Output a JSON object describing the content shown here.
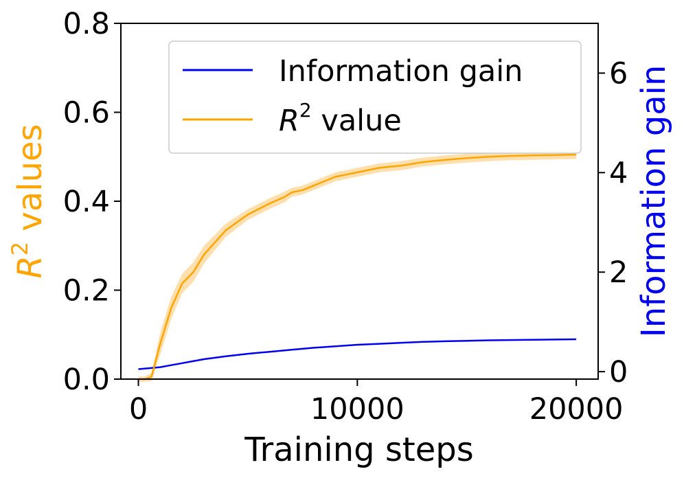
{
  "chart_data": {
    "type": "line",
    "title": "",
    "xlabel": "Training steps",
    "ylabel_left": {
      "base": "R",
      "sup": "2",
      "rest": " values"
    },
    "ylabel_right": "Information gain",
    "xlim": [
      -800,
      21000
    ],
    "ylim_left": [
      0,
      0.8
    ],
    "ylim_right": [
      -0.15,
      7.0
    ],
    "x_ticks": [
      0,
      10000,
      20000
    ],
    "x_tick_labels": [
      "0",
      "10000",
      "20000"
    ],
    "y_left_ticks": [
      0.0,
      0.2,
      0.4,
      0.6,
      0.8
    ],
    "y_left_tick_labels": [
      "0.0",
      "0.2",
      "0.4",
      "0.6",
      "0.8"
    ],
    "y_right_ticks": [
      0,
      2,
      4,
      6
    ],
    "y_right_tick_labels": [
      "0",
      "2",
      "4",
      "6"
    ],
    "legend": {
      "placement": "upper-right",
      "entries": [
        {
          "label": "Information gain",
          "series": "info_gain"
        },
        {
          "label_base": "R",
          "label_sup": "2",
          "label_rest": " value",
          "series": "r2"
        }
      ]
    },
    "series": [
      {
        "id": "info_gain",
        "name": "Information gain",
        "color": "#0000ee",
        "axis": "right",
        "x": [
          0,
          500,
          1000,
          1500,
          2000,
          2500,
          3000,
          4000,
          5000,
          6000,
          7000,
          8000,
          9000,
          10000,
          11000,
          12000,
          13000,
          14000,
          15000,
          16000,
          17000,
          18000,
          19000,
          20000
        ],
        "values": [
          0.05,
          0.07,
          0.09,
          0.13,
          0.17,
          0.21,
          0.25,
          0.31,
          0.36,
          0.4,
          0.44,
          0.48,
          0.51,
          0.54,
          0.56,
          0.58,
          0.6,
          0.61,
          0.62,
          0.63,
          0.635,
          0.64,
          0.645,
          0.65
        ]
      },
      {
        "id": "r2",
        "name": "R² value",
        "color": "#ffa500",
        "band_color": "#ffd9a0",
        "axis": "left",
        "x": [
          0,
          300,
          600,
          1000,
          1500,
          2000,
          2500,
          3000,
          4000,
          5000,
          6000,
          6700,
          7000,
          7500,
          8000,
          8500,
          9000,
          9500,
          10000,
          11000,
          12000,
          13000,
          14000,
          15000,
          16000,
          17000,
          18000,
          19000,
          20000
        ],
        "values": [
          0.0,
          0.0,
          0.005,
          0.08,
          0.16,
          0.215,
          0.24,
          0.28,
          0.335,
          0.37,
          0.395,
          0.41,
          0.42,
          0.425,
          0.435,
          0.445,
          0.455,
          0.46,
          0.465,
          0.475,
          0.48,
          0.488,
          0.493,
          0.497,
          0.5,
          0.502,
          0.503,
          0.504,
          0.505
        ],
        "band_halfwidth": [
          0.006,
          0.006,
          0.01,
          0.025,
          0.025,
          0.022,
          0.022,
          0.02,
          0.015,
          0.012,
          0.012,
          0.012,
          0.01,
          0.01,
          0.01,
          0.01,
          0.01,
          0.01,
          0.01,
          0.01,
          0.01,
          0.01,
          0.01,
          0.01,
          0.01,
          0.01,
          0.01,
          0.01,
          0.01
        ]
      }
    ]
  }
}
